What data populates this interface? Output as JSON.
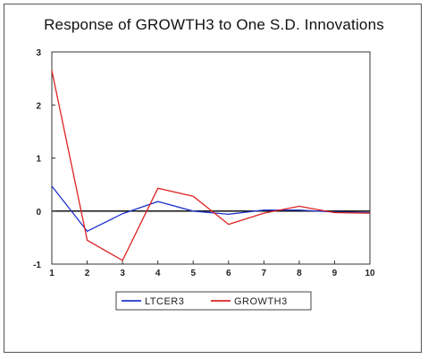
{
  "chart_data": {
    "type": "line",
    "title": "Response of GROWTH3 to One S.D. Innovations",
    "xlabel": "",
    "ylabel": "",
    "x": [
      1,
      2,
      3,
      4,
      5,
      6,
      7,
      8,
      9,
      10
    ],
    "xlim": [
      1,
      10
    ],
    "ylim": [
      -1,
      3
    ],
    "yticks": [
      -1,
      0,
      1,
      2,
      3
    ],
    "grid": false,
    "zero_line": true,
    "legend_position": "bottom-center",
    "series": [
      {
        "name": "LTCER3",
        "color": "#2233cc",
        "values": [
          0.47,
          -0.38,
          -0.05,
          0.18,
          0.0,
          -0.06,
          0.02,
          0.02,
          -0.02,
          -0.03
        ]
      },
      {
        "name": "GROWTH3",
        "color": "#dd2222",
        "values": [
          2.65,
          -0.55,
          -0.93,
          0.43,
          0.28,
          -0.25,
          -0.04,
          0.09,
          -0.03,
          -0.04
        ]
      }
    ]
  }
}
